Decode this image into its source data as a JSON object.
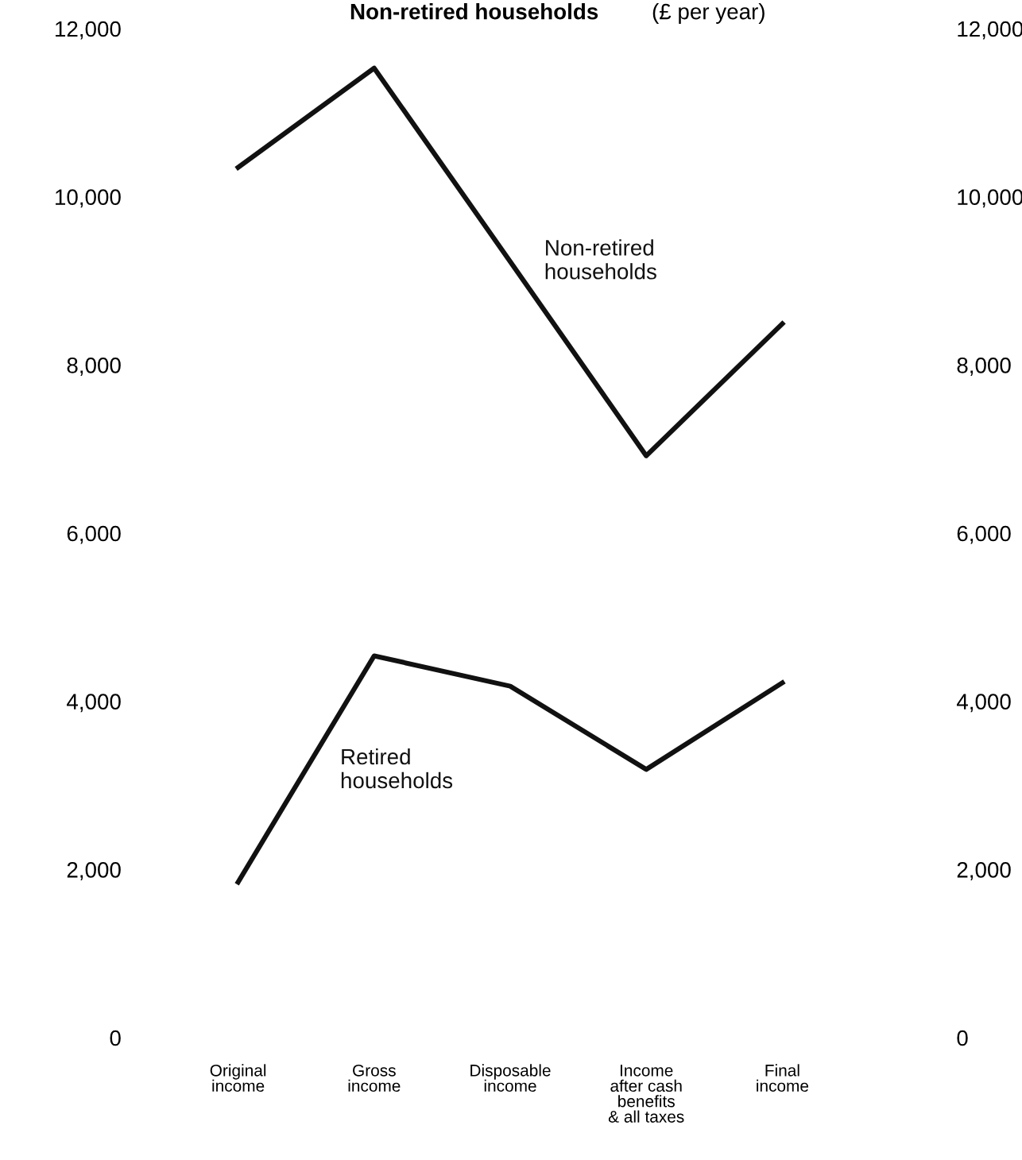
{
  "chart_data": {
    "type": "line",
    "title": "Non-retired households",
    "subtitle": "(£ per year)",
    "categories": [
      "Original\nincome",
      "Gross\nincome",
      "Disposable\nincome",
      "Income\nafter cash\nbenefits\n& all taxes",
      "Final\nincome"
    ],
    "series": [
      {
        "name": "Non-retired\nhouseholds",
        "color": "#111111",
        "values": [
          10350,
          11530,
          9230,
          6920,
          8490
        ]
      },
      {
        "name": "Retired\nhouseholds",
        "color": "#111111",
        "values": [
          1850,
          4540,
          4180,
          3190,
          4220
        ]
      }
    ],
    "ylim": [
      0,
      12000
    ],
    "yticks": [
      {
        "value": 0,
        "label": "0"
      },
      {
        "value": 2000,
        "label": "2,000"
      },
      {
        "value": 4000,
        "label": "4,000"
      },
      {
        "value": 6000,
        "label": "6,000"
      },
      {
        "value": 8000,
        "label": "8,000"
      },
      {
        "value": 10000,
        "label": "10,000"
      },
      {
        "value": 12000,
        "label": "12,000"
      }
    ],
    "y2lim": [
      0,
      12000
    ],
    "y2ticks": [
      {
        "value": 0,
        "label": "0"
      },
      {
        "value": 2000,
        "label": "2,000"
      },
      {
        "value": 4000,
        "label": "4,000"
      },
      {
        "value": 6000,
        "label": "6,000"
      },
      {
        "value": 8000,
        "label": "8,000"
      },
      {
        "value": 10000,
        "label": "10,000"
      },
      {
        "value": 12000,
        "label": "12,000"
      }
    ],
    "grid": false,
    "legend": false,
    "marker": "none",
    "line_style": "solid"
  }
}
